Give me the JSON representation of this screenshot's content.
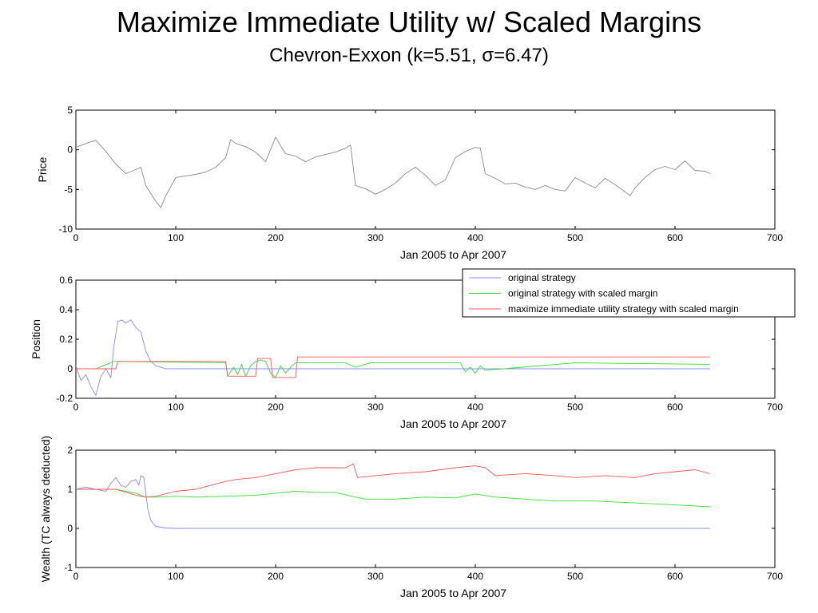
{
  "title": "Maximize Immediate Utility w/ Scaled Margins",
  "subtitle": "Chevron-Exxon (k=5.51, σ=6.47)",
  "colors": {
    "blue": "#8888ff",
    "green": "#33dd33",
    "red": "#ff5555",
    "gray": "#8a8a8a"
  },
  "chart_data": [
    {
      "type": "line",
      "xlabel": "Jan 2005 to Apr 2007",
      "ylabel": "Price",
      "xlim": [
        0,
        700
      ],
      "ylim": [
        -10,
        5
      ],
      "xticks": [
        0,
        100,
        200,
        300,
        400,
        500,
        600,
        700
      ],
      "yticks": [
        -10,
        -5,
        0,
        5
      ],
      "series": [
        {
          "color": "#8a8a8a",
          "x": [
            0,
            10,
            20,
            30,
            40,
            50,
            60,
            65,
            70,
            80,
            85,
            90,
            100,
            110,
            120,
            130,
            140,
            150,
            155,
            160,
            170,
            180,
            190,
            200,
            205,
            210,
            220,
            230,
            240,
            250,
            260,
            270,
            275,
            280,
            290,
            300,
            310,
            320,
            330,
            340,
            350,
            360,
            370,
            380,
            390,
            400,
            405,
            410,
            420,
            430,
            440,
            450,
            460,
            470,
            480,
            490,
            500,
            510,
            520,
            530,
            540,
            550,
            555,
            560,
            570,
            580,
            590,
            600,
            610,
            620,
            630,
            635
          ],
          "y": [
            0.3,
            0.8,
            1.2,
            -0.2,
            -1.8,
            -3.0,
            -2.5,
            -2.2,
            -4.5,
            -6.5,
            -7.3,
            -5.8,
            -3.5,
            -3.3,
            -3.1,
            -2.8,
            -2.2,
            -1.0,
            1.3,
            0.8,
            0.4,
            -0.3,
            -1.5,
            1.6,
            0.5,
            -0.5,
            -0.8,
            -1.5,
            -0.9,
            -0.6,
            -0.3,
            0.2,
            0.6,
            -4.5,
            -4.9,
            -5.6,
            -5.0,
            -4.2,
            -3.0,
            -2.2,
            -3.2,
            -4.5,
            -3.8,
            -1.0,
            -0.2,
            0.3,
            0.2,
            -3.0,
            -3.6,
            -4.3,
            -4.2,
            -4.7,
            -5.0,
            -4.5,
            -5.0,
            -5.2,
            -3.5,
            -4.2,
            -4.8,
            -3.6,
            -4.4,
            -5.3,
            -5.8,
            -4.8,
            -3.5,
            -2.5,
            -2.1,
            -2.5,
            -1.4,
            -2.6,
            -2.7,
            -3.0
          ]
        }
      ]
    },
    {
      "type": "line",
      "xlabel": "Jan 2005 to Apr 2007",
      "ylabel": "Position",
      "xlim": [
        0,
        700
      ],
      "ylim": [
        -0.2,
        0.6
      ],
      "xticks": [
        0,
        100,
        200,
        300,
        400,
        500,
        600,
        700
      ],
      "yticks": [
        -0.2,
        0,
        0.2,
        0.4,
        0.6
      ],
      "legend": {
        "location": "top-right",
        "entries": [
          {
            "name": "original strategy",
            "color": "#8888ff"
          },
          {
            "name": "original strategy with scaled margin",
            "color": "#33dd33"
          },
          {
            "name": "maximize immediate utility strategy with scaled margin",
            "color": "#ff5555"
          }
        ]
      },
      "series": [
        {
          "name": "original strategy",
          "color": "#8888ff",
          "x": [
            0,
            5,
            10,
            15,
            20,
            25,
            30,
            35,
            38,
            42,
            46,
            50,
            55,
            60,
            65,
            70,
            75,
            80,
            85,
            90,
            100,
            635
          ],
          "y": [
            0.02,
            -0.08,
            -0.04,
            -0.12,
            -0.18,
            -0.05,
            0.0,
            -0.06,
            0.15,
            0.32,
            0.33,
            0.31,
            0.33,
            0.28,
            0.25,
            0.12,
            0.05,
            0.02,
            0.01,
            0.0,
            0.0,
            0.0
          ]
        },
        {
          "name": "original strategy with scaled margin",
          "color": "#33dd33",
          "x": [
            0,
            20,
            38,
            45,
            150,
            152,
            158,
            162,
            166,
            170,
            175,
            180,
            185,
            190,
            195,
            200,
            205,
            210,
            215,
            220,
            270,
            280,
            295,
            385,
            390,
            395,
            400,
            405,
            410,
            500,
            635
          ],
          "y": [
            0.0,
            0.0,
            0.05,
            0.05,
            0.04,
            -0.05,
            0.01,
            -0.04,
            0.03,
            -0.05,
            0.02,
            0.05,
            0.06,
            0.05,
            -0.03,
            -0.06,
            0.02,
            -0.03,
            0.01,
            0.04,
            0.04,
            0.01,
            0.04,
            0.04,
            -0.02,
            0.01,
            -0.03,
            0.02,
            -0.01,
            0.04,
            0.03
          ]
        },
        {
          "name": "maximize immediate utility strategy with scaled margin",
          "color": "#ff5555",
          "x": [
            0,
            40,
            42,
            150,
            152,
            180,
            182,
            195,
            197,
            220,
            222,
            635
          ],
          "y": [
            0.0,
            0.0,
            0.05,
            0.05,
            -0.05,
            -0.05,
            0.07,
            0.07,
            -0.06,
            -0.06,
            0.08,
            0.08
          ]
        }
      ]
    },
    {
      "type": "line",
      "xlabel": "Jan 2005 to Apr 2007",
      "ylabel": "Wealth (TC always deducted)",
      "xlim": [
        0,
        700
      ],
      "ylim": [
        -1,
        2
      ],
      "xticks": [
        0,
        100,
        200,
        300,
        400,
        500,
        600,
        700
      ],
      "yticks": [
        -1,
        0,
        1,
        2
      ],
      "series": [
        {
          "name": "original strategy",
          "color": "#8888ff",
          "x": [
            0,
            10,
            20,
            30,
            35,
            40,
            45,
            50,
            55,
            60,
            63,
            65,
            68,
            70,
            72,
            75,
            80,
            90,
            100,
            200,
            400,
            635
          ],
          "y": [
            1.0,
            1.05,
            1.0,
            0.95,
            1.15,
            1.3,
            1.1,
            1.05,
            1.2,
            1.25,
            1.1,
            1.35,
            1.3,
            0.9,
            0.5,
            0.2,
            0.05,
            0.01,
            0.0,
            0.0,
            0.0,
            0.0
          ]
        },
        {
          "name": "original strategy with scaled margin",
          "color": "#33dd33",
          "x": [
            0,
            40,
            60,
            70,
            80,
            100,
            120,
            150,
            180,
            200,
            220,
            240,
            260,
            280,
            290,
            320,
            350,
            380,
            400,
            420,
            450,
            480,
            520,
            560,
            600,
            635
          ],
          "y": [
            1.0,
            1.0,
            0.9,
            0.8,
            0.8,
            0.82,
            0.8,
            0.82,
            0.85,
            0.9,
            0.95,
            0.92,
            0.92,
            0.8,
            0.75,
            0.75,
            0.8,
            0.78,
            0.88,
            0.8,
            0.75,
            0.7,
            0.7,
            0.65,
            0.6,
            0.55
          ]
        },
        {
          "name": "maximize immediate utility strategy with scaled margin",
          "color": "#ff5555",
          "x": [
            0,
            40,
            60,
            70,
            80,
            100,
            120,
            150,
            160,
            180,
            200,
            220,
            240,
            270,
            278,
            282,
            300,
            320,
            350,
            380,
            400,
            410,
            420,
            450,
            480,
            500,
            530,
            560,
            580,
            600,
            620,
            635
          ],
          "y": [
            1.0,
            1.0,
            0.85,
            0.8,
            0.82,
            0.95,
            1.0,
            1.2,
            1.25,
            1.3,
            1.4,
            1.5,
            1.55,
            1.55,
            1.65,
            1.3,
            1.35,
            1.4,
            1.45,
            1.55,
            1.6,
            1.55,
            1.35,
            1.4,
            1.35,
            1.3,
            1.35,
            1.3,
            1.4,
            1.45,
            1.5,
            1.4
          ]
        }
      ]
    }
  ]
}
